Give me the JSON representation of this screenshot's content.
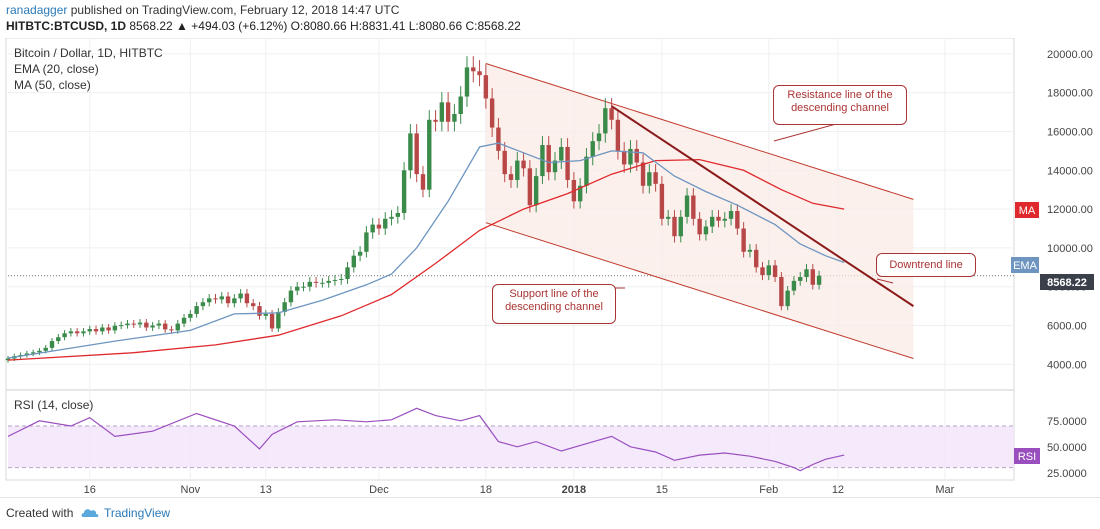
{
  "header": {
    "author": "ranadagger",
    "published_text": "published on TradingView.com, February 12, 2018 14:47 UTC",
    "symbol": "HITBTC:BTCUSD, 1D",
    "ohlc_text": "8568.22 ▲ +494.03 (+6.12%) O:8080.66 H:8831.41 L:8080.66 C:8568.22"
  },
  "legend": {
    "title": "Bitcoin / Dollar, 1D, HITBTC",
    "ema": "EMA (20, close)",
    "ma": "MA (50, close)",
    "rsi": "RSI (14, close)"
  },
  "annotations": {
    "resistance": "Resistance line of the descending channel",
    "support": "Support line of the descending channel",
    "downtrend": "Downtrend line"
  },
  "price_badges": {
    "last": "8568.22",
    "ma": "MA",
    "ema": "EMA",
    "rsi": "RSI"
  },
  "footer": {
    "created": "Created with",
    "brand": "TradingView"
  },
  "colors": {
    "up": "#3a8a4a",
    "down": "#b84848",
    "ema": "#6d95c0",
    "ma": "#e0292c",
    "rsi": "#9a4fbf",
    "annotation": "#a33333",
    "channel": "#fbe9e5"
  },
  "chart_data": [
    {
      "type": "candlestick",
      "title": "Bitcoin / Dollar, 1D, HITBTC",
      "x_ticks": [
        {
          "label": "16",
          "date": "2017-10-16"
        },
        {
          "label": "Nov",
          "date": "2017-11-01"
        },
        {
          "label": "13",
          "date": "2017-11-13"
        },
        {
          "label": "Dec",
          "date": "2017-12-01"
        },
        {
          "label": "18",
          "date": "2017-12-18"
        },
        {
          "label": "2018",
          "date": "2018-01-01"
        },
        {
          "label": "15",
          "date": "2018-01-15"
        },
        {
          "label": "Feb",
          "date": "2018-02-01"
        },
        {
          "label": "12",
          "date": "2018-02-12"
        },
        {
          "label": "Mar",
          "date": "2018-03-01"
        }
      ],
      "y_ticks": [
        "20000.00",
        "18000.00",
        "16000.00",
        "14000.00",
        "12000.00",
        "10000.00",
        "8000.00",
        "6000.00",
        "4000.00"
      ],
      "ylim": [
        3400,
        20300
      ],
      "xlim": [
        "2017-10-03",
        "2018-03-12"
      ],
      "last_price": 8568.22,
      "closes": [
        4300,
        4420,
        4480,
        4560,
        4620,
        4700,
        4850,
        5200,
        5400,
        5600,
        5700,
        5600,
        5700,
        5820,
        5700,
        5900,
        5750,
        5990,
        6020,
        6100,
        6060,
        6150,
        5900,
        6000,
        6100,
        5800,
        5750,
        6100,
        6400,
        6600,
        7000,
        7200,
        7400,
        7350,
        7500,
        7150,
        7400,
        7650,
        7150,
        7000,
        6500,
        6600,
        5850,
        6700,
        7200,
        7800,
        8000,
        8000,
        8250,
        8200,
        8200,
        8300,
        8350,
        8400,
        9000,
        9600,
        9800,
        10800,
        11200,
        11000,
        11500,
        11600,
        11800,
        14000,
        15900,
        13800,
        13000,
        16600,
        16500,
        17500,
        16500,
        16900,
        17800,
        19300,
        19100,
        18900,
        17700,
        16200,
        15000,
        13800,
        13500,
        14500,
        14100,
        12200,
        13700,
        15300,
        13900,
        14500,
        15200,
        13500,
        12400,
        13200,
        14700,
        15500,
        15900,
        17200,
        16600,
        15000,
        14300,
        15100,
        14400,
        13200,
        13900,
        13300,
        11500,
        11600,
        10600,
        11600,
        12700,
        11500,
        10700,
        11100,
        11600,
        11400,
        11500,
        11900,
        11000,
        9800,
        9900,
        9000,
        8600,
        9100,
        8500,
        7000,
        7800,
        8300,
        8500,
        8900,
        8100,
        8568.22
      ],
      "ema": [
        {
          "date": "2017-10-03",
          "v": 4320
        },
        {
          "date": "2017-10-20",
          "v": 5200
        },
        {
          "date": "2017-11-01",
          "v": 5750
        },
        {
          "date": "2017-11-08",
          "v": 6600
        },
        {
          "date": "2017-11-15",
          "v": 6650
        },
        {
          "date": "2017-11-22",
          "v": 7300
        },
        {
          "date": "2017-11-29",
          "v": 8100
        },
        {
          "date": "2017-12-03",
          "v": 8650
        },
        {
          "date": "2017-12-07",
          "v": 10000
        },
        {
          "date": "2017-12-12",
          "v": 12400
        },
        {
          "date": "2017-12-17",
          "v": 15200
        },
        {
          "date": "2017-12-20",
          "v": 15400
        },
        {
          "date": "2017-12-24",
          "v": 14900
        },
        {
          "date": "2017-12-28",
          "v": 14400
        },
        {
          "date": "2018-01-02",
          "v": 14500
        },
        {
          "date": "2018-01-07",
          "v": 15000
        },
        {
          "date": "2018-01-12",
          "v": 14900
        },
        {
          "date": "2018-01-17",
          "v": 13700
        },
        {
          "date": "2018-01-22",
          "v": 12900
        },
        {
          "date": "2018-01-27",
          "v": 12200
        },
        {
          "date": "2018-02-02",
          "v": 11200
        },
        {
          "date": "2018-02-06",
          "v": 10200
        },
        {
          "date": "2018-02-10",
          "v": 9600
        },
        {
          "date": "2018-02-13",
          "v": 9250
        }
      ],
      "ma": [
        {
          "date": "2017-10-03",
          "v": 4220
        },
        {
          "date": "2017-10-23",
          "v": 4600
        },
        {
          "date": "2017-11-05",
          "v": 5000
        },
        {
          "date": "2017-11-15",
          "v": 5500
        },
        {
          "date": "2017-11-25",
          "v": 6500
        },
        {
          "date": "2017-12-03",
          "v": 7600
        },
        {
          "date": "2017-12-10",
          "v": 9200
        },
        {
          "date": "2017-12-17",
          "v": 10900
        },
        {
          "date": "2017-12-24",
          "v": 12000
        },
        {
          "date": "2017-12-31",
          "v": 12800
        },
        {
          "date": "2018-01-07",
          "v": 13800
        },
        {
          "date": "2018-01-14",
          "v": 14500
        },
        {
          "date": "2018-01-21",
          "v": 14550
        },
        {
          "date": "2018-01-28",
          "v": 14000
        },
        {
          "date": "2018-02-03",
          "v": 13000
        },
        {
          "date": "2018-02-08",
          "v": 12300
        },
        {
          "date": "2018-02-13",
          "v": 12000
        }
      ],
      "channel": {
        "resistance": [
          {
            "date": "2017-12-18",
            "v": 19500
          },
          {
            "date": "2018-02-24",
            "v": 12500
          }
        ],
        "support": [
          {
            "date": "2017-12-18",
            "v": 11300
          },
          {
            "date": "2018-02-24",
            "v": 4300
          }
        ]
      },
      "downtrend_line": [
        {
          "date": "2018-01-07",
          "v": 17300
        },
        {
          "date": "2018-02-24",
          "v": 7000
        }
      ]
    },
    {
      "type": "line",
      "title": "RSI (14, close)",
      "y_ticks": [
        "75.0000",
        "50.0000",
        "25.0000"
      ],
      "ylim": [
        20,
        95
      ],
      "band": [
        30,
        70
      ],
      "values": [
        {
          "date": "2017-10-03",
          "v": 60
        },
        {
          "date": "2017-10-08",
          "v": 75
        },
        {
          "date": "2017-10-13",
          "v": 70
        },
        {
          "date": "2017-10-16",
          "v": 78
        },
        {
          "date": "2017-10-20",
          "v": 60
        },
        {
          "date": "2017-10-26",
          "v": 65
        },
        {
          "date": "2017-11-02",
          "v": 82
        },
        {
          "date": "2017-11-08",
          "v": 70
        },
        {
          "date": "2017-11-12",
          "v": 48
        },
        {
          "date": "2017-11-14",
          "v": 62
        },
        {
          "date": "2017-11-18",
          "v": 74
        },
        {
          "date": "2017-11-24",
          "v": 76
        },
        {
          "date": "2017-11-29",
          "v": 74
        },
        {
          "date": "2017-12-03",
          "v": 76
        },
        {
          "date": "2017-12-07",
          "v": 87
        },
        {
          "date": "2017-12-10",
          "v": 80
        },
        {
          "date": "2017-12-14",
          "v": 75
        },
        {
          "date": "2017-12-17",
          "v": 80
        },
        {
          "date": "2017-12-20",
          "v": 55
        },
        {
          "date": "2017-12-23",
          "v": 50
        },
        {
          "date": "2017-12-26",
          "v": 55
        },
        {
          "date": "2017-12-30",
          "v": 46
        },
        {
          "date": "2018-01-03",
          "v": 53
        },
        {
          "date": "2018-01-07",
          "v": 60
        },
        {
          "date": "2018-01-10",
          "v": 50
        },
        {
          "date": "2018-01-14",
          "v": 45
        },
        {
          "date": "2018-01-17",
          "v": 37
        },
        {
          "date": "2018-01-21",
          "v": 42
        },
        {
          "date": "2018-01-25",
          "v": 44
        },
        {
          "date": "2018-01-29",
          "v": 41
        },
        {
          "date": "2018-02-02",
          "v": 36
        },
        {
          "date": "2018-02-05",
          "v": 30
        },
        {
          "date": "2018-02-06",
          "v": 27
        },
        {
          "date": "2018-02-08",
          "v": 33
        },
        {
          "date": "2018-02-10",
          "v": 38
        },
        {
          "date": "2018-02-13",
          "v": 42
        }
      ]
    }
  ]
}
